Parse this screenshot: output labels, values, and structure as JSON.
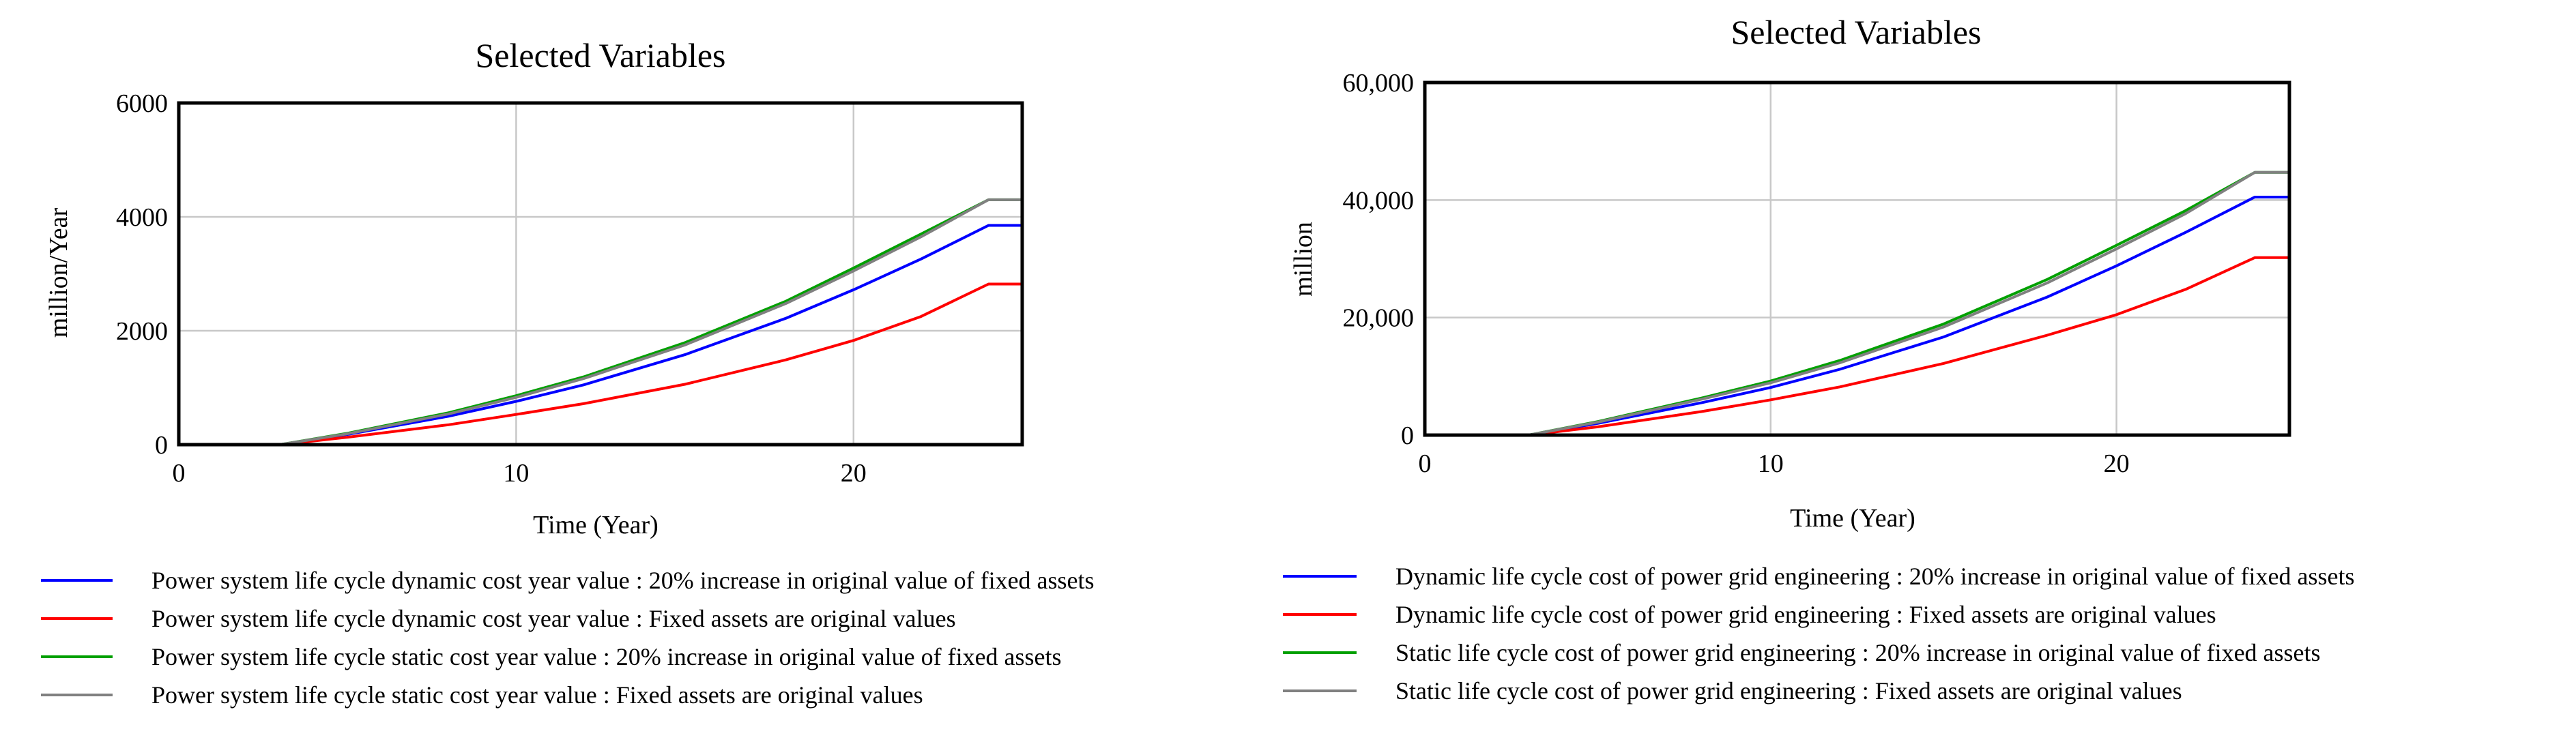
{
  "chart_data": [
    {
      "type": "line",
      "title": "Selected Variables",
      "xlabel": "Time (Year)",
      "ylabel": "million/Year",
      "xlim": [
        0,
        25
      ],
      "ylim": [
        0,
        6000
      ],
      "xticks": [
        0,
        10,
        20
      ],
      "yticks": [
        0,
        2000,
        4000,
        6000
      ],
      "xtick_labels": [
        "0",
        "10",
        "20"
      ],
      "ytick_labels": [
        "0",
        "2000",
        "4000",
        "6000"
      ],
      "grid": true,
      "legend_position": "bottom",
      "series": [
        {
          "name": "Power system life cycle dynamic cost year value : 20% increase in original value of fixed assets",
          "color": "#0000ff",
          "x": [
            0,
            3,
            5,
            8,
            10,
            12,
            15,
            18,
            20,
            22,
            24,
            25
          ],
          "y": [
            0,
            0,
            180,
            500,
            760,
            1050,
            1580,
            2220,
            2720,
            3260,
            3850,
            3850
          ]
        },
        {
          "name": "Power system life cycle dynamic cost year value : Fixed assets are original values",
          "color": "#ff0000",
          "x": [
            0,
            3,
            5,
            8,
            10,
            12,
            15,
            18,
            20,
            22,
            24,
            25
          ],
          "y": [
            0,
            0,
            130,
            350,
            530,
            720,
            1060,
            1490,
            1830,
            2250,
            2820,
            2820
          ]
        },
        {
          "name": "Power system life cycle static cost year value : 20% increase in original value of fixed assets",
          "color": "#00a000",
          "x": [
            0,
            3,
            5,
            8,
            10,
            12,
            15,
            18,
            20,
            22,
            24,
            25
          ],
          "y": [
            0,
            0,
            200,
            560,
            860,
            1190,
            1790,
            2520,
            3100,
            3700,
            4300,
            4300
          ]
        },
        {
          "name": "Power system life cycle static cost year value : Fixed assets are original values",
          "color": "#808080",
          "x": [
            0,
            3,
            5,
            8,
            10,
            12,
            15,
            18,
            20,
            22,
            24,
            25
          ],
          "y": [
            0,
            0,
            190,
            540,
            830,
            1160,
            1750,
            2480,
            3050,
            3650,
            4300,
            4300
          ]
        }
      ]
    },
    {
      "type": "line",
      "title": "Selected Variables",
      "xlabel": "Time (Year)",
      "ylabel": "million",
      "xlim": [
        0,
        25
      ],
      "ylim": [
        0,
        60000
      ],
      "xticks": [
        0,
        10,
        20
      ],
      "yticks": [
        0,
        20000,
        40000,
        60000
      ],
      "xtick_labels": [
        "0",
        "10",
        "20"
      ],
      "ytick_labels": [
        "0",
        "20,000",
        "40,000",
        "60,000"
      ],
      "grid": true,
      "legend_position": "bottom",
      "series": [
        {
          "name": "Dynamic life cycle cost of power grid engineering : 20% increase in original value of fixed assets",
          "color": "#0000ff",
          "x": [
            0,
            3,
            5,
            8,
            10,
            12,
            15,
            18,
            20,
            22,
            24,
            25
          ],
          "y": [
            0,
            0,
            2000,
            5500,
            8100,
            11200,
            16700,
            23500,
            28800,
            34500,
            40500,
            40500
          ]
        },
        {
          "name": "Dynamic life cycle cost of power grid engineering : Fixed assets are original values",
          "color": "#ff0000",
          "x": [
            0,
            3,
            5,
            8,
            10,
            12,
            15,
            18,
            20,
            22,
            24,
            25
          ],
          "y": [
            0,
            0,
            1400,
            4000,
            6000,
            8200,
            12200,
            17000,
            20500,
            24800,
            30200,
            30200
          ]
        },
        {
          "name": "Static life cycle cost of power grid engineering : 20% increase in original value of fixed assets",
          "color": "#00a000",
          "x": [
            0,
            3,
            5,
            8,
            10,
            12,
            15,
            18,
            20,
            22,
            24,
            25
          ],
          "y": [
            0,
            0,
            2300,
            6300,
            9200,
            12700,
            18900,
            26500,
            32300,
            38200,
            44700,
            44700
          ]
        },
        {
          "name": "Static life cycle cost of power grid engineering : Fixed assets are original values",
          "color": "#808080",
          "x": [
            0,
            3,
            5,
            8,
            10,
            12,
            15,
            18,
            20,
            22,
            24,
            25
          ],
          "y": [
            0,
            0,
            2200,
            6100,
            8900,
            12300,
            18400,
            25900,
            31700,
            37700,
            44700,
            44700
          ]
        }
      ]
    }
  ]
}
